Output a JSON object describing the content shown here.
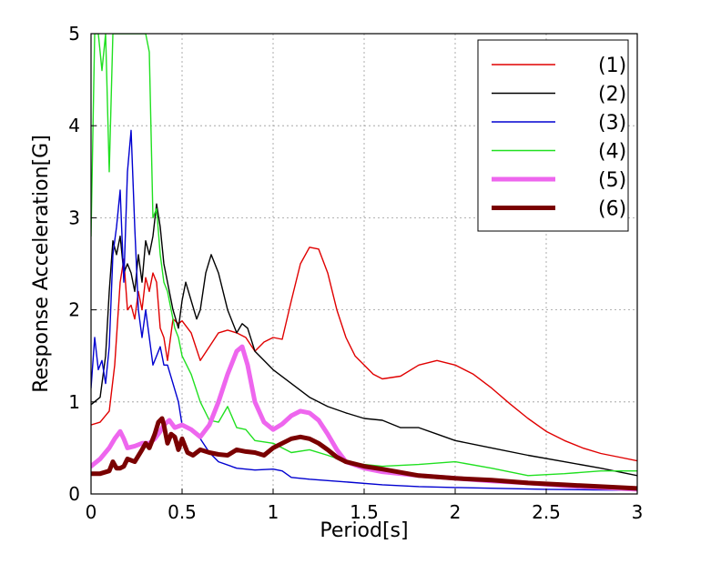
{
  "chart_data": {
    "type": "line",
    "title": "",
    "xlabel": "Period[s]",
    "ylabel": "Response Acceleration[G]",
    "xlim": [
      0,
      3
    ],
    "ylim": [
      0,
      5
    ],
    "xticks": [
      "0",
      "0.5",
      "1",
      "1.5",
      "2",
      "2.5",
      "3"
    ],
    "yticks": [
      "0",
      "1",
      "2",
      "3",
      "4",
      "5"
    ],
    "grid": true,
    "legend_position": "top-right",
    "series": [
      {
        "name": "(1)",
        "color": "#e00000",
        "width": "thin",
        "x": [
          0,
          0.05,
          0.1,
          0.13,
          0.16,
          0.18,
          0.2,
          0.22,
          0.24,
          0.26,
          0.28,
          0.3,
          0.32,
          0.34,
          0.36,
          0.38,
          0.4,
          0.42,
          0.45,
          0.48,
          0.5,
          0.55,
          0.6,
          0.65,
          0.7,
          0.75,
          0.8,
          0.85,
          0.9,
          0.95,
          1.0,
          1.05,
          1.1,
          1.15,
          1.2,
          1.25,
          1.3,
          1.35,
          1.4,
          1.45,
          1.5,
          1.55,
          1.6,
          1.7,
          1.8,
          1.9,
          2.0,
          2.1,
          2.2,
          2.3,
          2.4,
          2.5,
          2.6,
          2.7,
          2.8,
          2.9,
          3.0
        ],
        "y": [
          0.75,
          0.78,
          0.9,
          1.4,
          2.3,
          2.55,
          2.0,
          2.05,
          1.9,
          2.2,
          2.0,
          2.35,
          2.2,
          2.4,
          2.3,
          1.8,
          1.7,
          1.45,
          1.9,
          1.85,
          1.88,
          1.75,
          1.45,
          1.6,
          1.75,
          1.78,
          1.75,
          1.7,
          1.55,
          1.65,
          1.7,
          1.68,
          2.1,
          2.5,
          2.68,
          2.66,
          2.4,
          2.0,
          1.7,
          1.5,
          1.4,
          1.3,
          1.25,
          1.28,
          1.4,
          1.45,
          1.4,
          1.3,
          1.15,
          0.98,
          0.82,
          0.68,
          0.58,
          0.5,
          0.44,
          0.4,
          0.36
        ]
      },
      {
        "name": "(2)",
        "color": "#000000",
        "width": "thin",
        "x": [
          0,
          0.05,
          0.08,
          0.1,
          0.12,
          0.14,
          0.16,
          0.18,
          0.2,
          0.22,
          0.24,
          0.26,
          0.28,
          0.3,
          0.32,
          0.34,
          0.36,
          0.38,
          0.4,
          0.42,
          0.45,
          0.48,
          0.5,
          0.52,
          0.55,
          0.58,
          0.6,
          0.63,
          0.66,
          0.7,
          0.75,
          0.8,
          0.83,
          0.86,
          0.9,
          1.0,
          1.1,
          1.2,
          1.3,
          1.4,
          1.5,
          1.6,
          1.7,
          1.8,
          1.9,
          2.0,
          2.2,
          2.4,
          2.6,
          2.8,
          3.0
        ],
        "y": [
          0.97,
          1.05,
          1.5,
          2.2,
          2.75,
          2.6,
          2.8,
          2.4,
          2.5,
          2.4,
          2.2,
          2.6,
          2.3,
          2.75,
          2.6,
          2.8,
          3.15,
          2.9,
          2.5,
          2.3,
          2.0,
          1.8,
          2.1,
          2.3,
          2.1,
          1.9,
          2.0,
          2.4,
          2.6,
          2.4,
          2.0,
          1.75,
          1.85,
          1.8,
          1.55,
          1.35,
          1.2,
          1.05,
          0.95,
          0.88,
          0.82,
          0.8,
          0.72,
          0.72,
          0.65,
          0.58,
          0.5,
          0.42,
          0.35,
          0.28,
          0.2
        ]
      },
      {
        "name": "(3)",
        "color": "#0000d0",
        "width": "thin",
        "x": [
          0,
          0.02,
          0.04,
          0.06,
          0.08,
          0.1,
          0.12,
          0.14,
          0.16,
          0.18,
          0.2,
          0.22,
          0.24,
          0.26,
          0.28,
          0.3,
          0.32,
          0.34,
          0.36,
          0.38,
          0.4,
          0.42,
          0.45,
          0.48,
          0.5,
          0.55,
          0.6,
          0.65,
          0.7,
          0.8,
          0.9,
          1.0,
          1.05,
          1.1,
          1.2,
          1.4,
          1.6,
          1.8,
          2.0,
          2.5,
          3.0
        ],
        "y": [
          1.15,
          1.7,
          1.35,
          1.45,
          1.2,
          1.6,
          2.6,
          2.9,
          3.3,
          2.3,
          3.5,
          3.95,
          2.9,
          2.0,
          1.7,
          2.0,
          1.7,
          1.4,
          1.5,
          1.6,
          1.4,
          1.4,
          1.2,
          1.0,
          0.75,
          0.7,
          0.6,
          0.45,
          0.35,
          0.28,
          0.26,
          0.27,
          0.25,
          0.18,
          0.16,
          0.13,
          0.1,
          0.08,
          0.07,
          0.05,
          0.04
        ]
      },
      {
        "name": "(4)",
        "color": "#20e020",
        "width": "thin",
        "x": [
          0,
          0.02,
          0.04,
          0.06,
          0.08,
          0.1,
          0.12,
          0.14,
          0.16,
          0.18,
          0.2,
          0.22,
          0.25,
          0.28,
          0.3,
          0.32,
          0.34,
          0.36,
          0.38,
          0.4,
          0.42,
          0.44,
          0.46,
          0.48,
          0.5,
          0.55,
          0.6,
          0.65,
          0.7,
          0.75,
          0.8,
          0.85,
          0.9,
          1.0,
          1.1,
          1.2,
          1.3,
          1.4,
          1.5,
          1.6,
          1.8,
          2.0,
          2.2,
          2.4,
          2.6,
          2.8,
          3.0
        ],
        "y": [
          2.8,
          5.0,
          5.0,
          4.6,
          5.0,
          3.5,
          5.0,
          5.0,
          5.0,
          5.0,
          5.0,
          5.0,
          5.0,
          5.0,
          5.0,
          4.8,
          3.0,
          3.1,
          2.6,
          2.3,
          2.2,
          2.0,
          1.8,
          1.7,
          1.5,
          1.3,
          1.0,
          0.8,
          0.78,
          0.95,
          0.72,
          0.7,
          0.58,
          0.55,
          0.45,
          0.48,
          0.42,
          0.35,
          0.32,
          0.3,
          0.32,
          0.35,
          0.28,
          0.2,
          0.22,
          0.25,
          0.25
        ]
      },
      {
        "name": "(5)",
        "color": "#ee66ee",
        "width": "thick",
        "x": [
          0,
          0.05,
          0.1,
          0.13,
          0.16,
          0.18,
          0.2,
          0.24,
          0.28,
          0.32,
          0.35,
          0.38,
          0.4,
          0.43,
          0.46,
          0.5,
          0.55,
          0.6,
          0.65,
          0.7,
          0.75,
          0.8,
          0.83,
          0.86,
          0.9,
          0.95,
          1.0,
          1.05,
          1.1,
          1.15,
          1.2,
          1.25,
          1.3,
          1.35,
          1.4,
          1.5,
          1.6,
          1.8,
          2.0,
          2.2,
          2.4,
          2.6,
          2.8,
          3.0
        ],
        "y": [
          0.3,
          0.38,
          0.5,
          0.6,
          0.68,
          0.6,
          0.5,
          0.52,
          0.55,
          0.55,
          0.6,
          0.68,
          0.75,
          0.8,
          0.72,
          0.75,
          0.7,
          0.62,
          0.75,
          1.0,
          1.3,
          1.55,
          1.6,
          1.4,
          1.0,
          0.78,
          0.7,
          0.76,
          0.85,
          0.9,
          0.88,
          0.8,
          0.65,
          0.48,
          0.35,
          0.28,
          0.24,
          0.2,
          0.17,
          0.14,
          0.12,
          0.09,
          0.07,
          0.05
        ]
      },
      {
        "name": "(6)",
        "color": "#7a0000",
        "width": "thick",
        "x": [
          0,
          0.05,
          0.1,
          0.12,
          0.14,
          0.16,
          0.18,
          0.2,
          0.24,
          0.28,
          0.3,
          0.32,
          0.35,
          0.37,
          0.39,
          0.4,
          0.42,
          0.44,
          0.46,
          0.48,
          0.5,
          0.53,
          0.56,
          0.6,
          0.65,
          0.7,
          0.75,
          0.8,
          0.85,
          0.9,
          0.95,
          1.0,
          1.05,
          1.1,
          1.15,
          1.2,
          1.25,
          1.3,
          1.35,
          1.4,
          1.5,
          1.6,
          1.8,
          2.0,
          2.2,
          2.4,
          2.6,
          2.8,
          3.0
        ],
        "y": [
          0.22,
          0.22,
          0.25,
          0.35,
          0.28,
          0.28,
          0.3,
          0.38,
          0.35,
          0.48,
          0.55,
          0.5,
          0.65,
          0.78,
          0.82,
          0.75,
          0.55,
          0.65,
          0.62,
          0.48,
          0.6,
          0.45,
          0.42,
          0.48,
          0.45,
          0.43,
          0.42,
          0.48,
          0.46,
          0.45,
          0.42,
          0.5,
          0.55,
          0.6,
          0.62,
          0.6,
          0.55,
          0.48,
          0.4,
          0.35,
          0.3,
          0.27,
          0.2,
          0.17,
          0.15,
          0.12,
          0.1,
          0.08,
          0.06
        ]
      }
    ]
  }
}
